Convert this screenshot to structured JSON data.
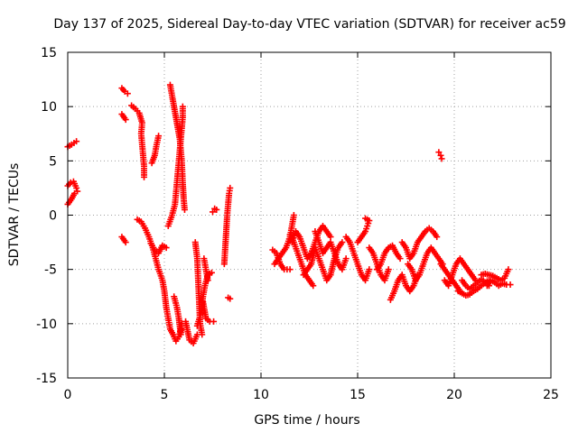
{
  "chart_data": {
    "type": "scatter",
    "title": "Day 137 of 2025, Sidereal Day-to-day VTEC variation (SDTVAR) for receiver ac59",
    "xlabel": "GPS time / hours",
    "ylabel": "SDTVAR / TECUs",
    "xlim": [
      0,
      25
    ],
    "ylim": [
      -15,
      15
    ],
    "xticks": [
      0,
      5,
      10,
      15,
      20,
      25
    ],
    "yticks": [
      -15,
      -10,
      -5,
      0,
      5,
      10,
      15
    ],
    "grid": true,
    "marker": "+",
    "color": "#ff0000",
    "series": [
      {
        "name": "SDTVAR",
        "segments": [
          [
            [
              0.0,
              6.3
            ],
            [
              0.2,
              6.5
            ],
            [
              0.45,
              6.8
            ]
          ],
          [
            [
              0.0,
              2.7
            ],
            [
              0.15,
              3.0
            ],
            [
              0.3,
              3.1
            ],
            [
              0.45,
              2.5
            ]
          ],
          [
            [
              0.0,
              1.0
            ],
            [
              0.2,
              1.5
            ],
            [
              0.35,
              2.0
            ],
            [
              0.5,
              2.2
            ]
          ],
          [
            [
              2.8,
              11.7
            ],
            [
              2.95,
              11.4
            ],
            [
              3.1,
              11.2
            ]
          ],
          [
            [
              2.8,
              9.3
            ],
            [
              3.0,
              8.8
            ]
          ],
          [
            [
              2.8,
              -2.0
            ],
            [
              3.0,
              -2.5
            ]
          ],
          [
            [
              3.3,
              10.1
            ],
            [
              3.5,
              9.8
            ],
            [
              3.7,
              9.4
            ],
            [
              3.85,
              8.5
            ],
            [
              3.8,
              7.5
            ],
            [
              3.85,
              6.5
            ],
            [
              3.9,
              5.5
            ],
            [
              3.95,
              4.5
            ],
            [
              3.95,
              3.5
            ]
          ],
          [
            [
              3.6,
              -0.4
            ],
            [
              3.8,
              -0.6
            ],
            [
              4.0,
              -1.2
            ],
            [
              4.2,
              -2.0
            ],
            [
              4.4,
              -3.0
            ],
            [
              4.55,
              -4.0
            ],
            [
              4.7,
              -5.0
            ],
            [
              4.9,
              -6.0
            ],
            [
              5.0,
              -7.0
            ],
            [
              5.1,
              -8.5
            ],
            [
              5.2,
              -9.5
            ],
            [
              5.3,
              -10.5
            ],
            [
              5.45,
              -11.0
            ],
            [
              5.6,
              -11.6
            ],
            [
              5.75,
              -11.2
            ],
            [
              5.85,
              -10.5
            ]
          ],
          [
            [
              4.3,
              -2.6
            ],
            [
              4.5,
              -3.2
            ],
            [
              4.7,
              -3.5
            ],
            [
              4.9,
              -2.8
            ],
            [
              5.1,
              -3.0
            ]
          ],
          [
            [
              4.35,
              4.8
            ],
            [
              4.5,
              5.5
            ],
            [
              4.6,
              6.5
            ],
            [
              4.7,
              7.3
            ]
          ],
          [
            [
              5.2,
              -1.0
            ],
            [
              5.4,
              0.0
            ],
            [
              5.55,
              1.0
            ],
            [
              5.6,
              2.0
            ],
            [
              5.65,
              3.0
            ],
            [
              5.7,
              4.0
            ],
            [
              5.75,
              5.0
            ],
            [
              5.8,
              6.0
            ],
            [
              5.85,
              7.0
            ],
            [
              5.9,
              8.0
            ],
            [
              5.95,
              9.0
            ],
            [
              5.95,
              10.0
            ]
          ],
          [
            [
              5.3,
              12.0
            ],
            [
              5.45,
              10.5
            ],
            [
              5.6,
              9.0
            ],
            [
              5.8,
              7.0
            ],
            [
              5.9,
              5.0
            ],
            [
              5.95,
              3.0
            ],
            [
              6.0,
              1.5
            ],
            [
              6.05,
              0.5
            ]
          ],
          [
            [
              5.5,
              -7.5
            ],
            [
              5.65,
              -8.5
            ],
            [
              5.75,
              -9.5
            ],
            [
              5.85,
              -11.0
            ],
            [
              5.9,
              -10.0
            ]
          ],
          [
            [
              6.1,
              -9.8
            ],
            [
              6.3,
              -11.5
            ],
            [
              6.5,
              -11.8
            ],
            [
              6.7,
              -11.0
            ]
          ],
          [
            [
              6.6,
              -2.5
            ],
            [
              6.7,
              -4.0
            ],
            [
              6.75,
              -6.0
            ],
            [
              6.8,
              -8.0
            ],
            [
              6.85,
              -10.0
            ],
            [
              6.95,
              -11.0
            ]
          ],
          [
            [
              6.7,
              -10.2
            ],
            [
              6.9,
              -9.0
            ],
            [
              7.0,
              -7.5
            ],
            [
              7.1,
              -6.5
            ],
            [
              7.25,
              -5.5
            ],
            [
              7.45,
              -5.3
            ]
          ],
          [
            [
              7.0,
              -8.0
            ],
            [
              7.15,
              -9.5
            ],
            [
              7.35,
              -9.8
            ],
            [
              7.55,
              -9.8
            ]
          ],
          [
            [
              7.05,
              -4.0
            ],
            [
              7.15,
              -5.0
            ],
            [
              7.25,
              -6.0
            ]
          ],
          [
            [
              7.5,
              0.3
            ],
            [
              7.6,
              0.6
            ],
            [
              7.7,
              0.5
            ]
          ],
          [
            [
              8.1,
              -4.5
            ],
            [
              8.15,
              -3.0
            ],
            [
              8.2,
              -1.5
            ],
            [
              8.25,
              0.0
            ],
            [
              8.3,
              1.0
            ],
            [
              8.35,
              2.0
            ],
            [
              8.4,
              2.5
            ]
          ],
          [
            [
              8.3,
              -7.6
            ],
            [
              8.4,
              -7.7
            ]
          ],
          [
            [
              10.7,
              -4.5
            ],
            [
              10.9,
              -4.0
            ],
            [
              11.1,
              -3.5
            ],
            [
              11.3,
              -3.0
            ],
            [
              11.5,
              -2.0
            ],
            [
              11.6,
              -1.0
            ],
            [
              11.7,
              0.0
            ]
          ],
          [
            [
              10.6,
              -3.2
            ],
            [
              10.8,
              -3.5
            ],
            [
              11.0,
              -4.5
            ],
            [
              11.2,
              -5.0
            ],
            [
              11.5,
              -5.0
            ]
          ],
          [
            [
              11.5,
              -1.8
            ],
            [
              11.7,
              -2.5
            ],
            [
              11.9,
              -3.5
            ],
            [
              12.1,
              -4.5
            ],
            [
              12.3,
              -5.5
            ],
            [
              12.5,
              -6.0
            ],
            [
              12.7,
              -6.5
            ]
          ],
          [
            [
              11.6,
              -2.5
            ],
            [
              11.8,
              -1.5
            ],
            [
              12.0,
              -2.0
            ],
            [
              12.2,
              -3.0
            ],
            [
              12.4,
              -4.0
            ],
            [
              12.6,
              -3.5
            ],
            [
              12.8,
              -2.5
            ],
            [
              13.0,
              -1.5
            ],
            [
              13.2,
              -1.0
            ],
            [
              13.4,
              -1.5
            ],
            [
              13.6,
              -2.0
            ]
          ],
          [
            [
              12.2,
              -5.5
            ],
            [
              12.4,
              -5.0
            ],
            [
              12.6,
              -4.5
            ],
            [
              12.8,
              -3.0
            ],
            [
              13.0,
              -4.0
            ],
            [
              13.2,
              -5.0
            ],
            [
              13.4,
              -6.0
            ],
            [
              13.6,
              -5.5
            ],
            [
              13.8,
              -4.0
            ],
            [
              14.0,
              -3.0
            ],
            [
              14.2,
              -2.5
            ]
          ],
          [
            [
              12.8,
              -1.5
            ],
            [
              13.0,
              -2.5
            ],
            [
              13.2,
              -3.5
            ],
            [
              13.4,
              -3.0
            ],
            [
              13.6,
              -2.5
            ],
            [
              13.8,
              -3.5
            ],
            [
              14.0,
              -4.5
            ],
            [
              14.2,
              -5.0
            ],
            [
              14.4,
              -4.0
            ]
          ],
          [
            [
              14.4,
              -2.0
            ],
            [
              14.6,
              -2.5
            ],
            [
              14.8,
              -3.5
            ],
            [
              15.0,
              -4.5
            ],
            [
              15.2,
              -5.5
            ],
            [
              15.4,
              -6.0
            ],
            [
              15.6,
              -5.0
            ]
          ],
          [
            [
              15.0,
              -2.5
            ],
            [
              15.2,
              -2.0
            ],
            [
              15.4,
              -1.5
            ],
            [
              15.5,
              -1.0
            ],
            [
              15.6,
              -0.5
            ],
            [
              15.4,
              -0.3
            ]
          ],
          [
            [
              15.6,
              -3.0
            ],
            [
              15.8,
              -3.5
            ],
            [
              16.0,
              -4.5
            ],
            [
              16.2,
              -5.5
            ],
            [
              16.4,
              -6.0
            ],
            [
              16.6,
              -5.0
            ]
          ],
          [
            [
              16.0,
              -5.0
            ],
            [
              16.2,
              -4.5
            ],
            [
              16.4,
              -3.5
            ],
            [
              16.6,
              -3.0
            ],
            [
              16.8,
              -2.8
            ],
            [
              17.0,
              -3.5
            ],
            [
              17.2,
              -4.0
            ]
          ],
          [
            [
              16.7,
              -7.8
            ],
            [
              16.9,
              -7.0
            ],
            [
              17.1,
              -6.0
            ],
            [
              17.3,
              -5.5
            ],
            [
              17.5,
              -6.5
            ],
            [
              17.7,
              -7.0
            ],
            [
              17.9,
              -6.5
            ],
            [
              18.1,
              -5.5
            ]
          ],
          [
            [
              17.3,
              -2.5
            ],
            [
              17.5,
              -3.0
            ],
            [
              17.7,
              -4.0
            ],
            [
              17.9,
              -3.5
            ],
            [
              18.1,
              -2.5
            ],
            [
              18.3,
              -2.0
            ],
            [
              18.5,
              -1.5
            ],
            [
              18.7,
              -1.2
            ],
            [
              18.9,
              -1.5
            ],
            [
              19.1,
              -2.0
            ]
          ],
          [
            [
              17.6,
              -4.5
            ],
            [
              17.8,
              -5.0
            ],
            [
              18.0,
              -6.0
            ],
            [
              18.2,
              -5.5
            ],
            [
              18.4,
              -4.5
            ],
            [
              18.6,
              -3.5
            ],
            [
              18.8,
              -3.0
            ],
            [
              19.0,
              -3.5
            ],
            [
              19.2,
              -4.0
            ],
            [
              19.4,
              -4.5
            ]
          ],
          [
            [
              19.2,
              5.8
            ],
            [
              19.3,
              5.5
            ],
            [
              19.35,
              5.2
            ]
          ],
          [
            [
              19.3,
              -4.5
            ],
            [
              19.5,
              -5.0
            ],
            [
              19.7,
              -5.5
            ],
            [
              19.9,
              -6.0
            ],
            [
              20.1,
              -6.5
            ],
            [
              20.3,
              -7.0
            ]
          ],
          [
            [
              19.5,
              -6.0
            ],
            [
              19.7,
              -6.5
            ],
            [
              19.9,
              -5.5
            ],
            [
              20.1,
              -4.5
            ],
            [
              20.3,
              -4.0
            ],
            [
              20.5,
              -4.5
            ],
            [
              20.7,
              -5.0
            ],
            [
              20.9,
              -5.5
            ],
            [
              21.1,
              -6.0
            ]
          ],
          [
            [
              20.2,
              -7.0
            ],
            [
              20.4,
              -7.2
            ],
            [
              20.6,
              -7.4
            ],
            [
              20.8,
              -7.3
            ],
            [
              21.0,
              -7.0
            ],
            [
              21.2,
              -6.8
            ],
            [
              21.4,
              -6.5
            ],
            [
              21.6,
              -6.2
            ],
            [
              21.8,
              -6.0
            ]
          ],
          [
            [
              20.4,
              -6.0
            ],
            [
              20.6,
              -6.5
            ],
            [
              20.8,
              -6.8
            ],
            [
              21.0,
              -6.5
            ],
            [
              21.2,
              -6.2
            ],
            [
              21.4,
              -5.9
            ],
            [
              21.6,
              -6.2
            ],
            [
              21.8,
              -6.5
            ]
          ],
          [
            [
              21.4,
              -5.5
            ],
            [
              21.6,
              -5.4
            ],
            [
              21.8,
              -5.5
            ],
            [
              22.0,
              -5.6
            ],
            [
              22.2,
              -5.8
            ],
            [
              22.4,
              -6.0
            ],
            [
              22.6,
              -5.8
            ],
            [
              22.8,
              -5.0
            ]
          ],
          [
            [
              21.7,
              -6.5
            ],
            [
              21.9,
              -6.0
            ],
            [
              22.1,
              -6.2
            ],
            [
              22.3,
              -6.5
            ],
            [
              22.5,
              -6.3
            ],
            [
              22.7,
              -6.4
            ],
            [
              22.9,
              -6.4
            ]
          ]
        ]
      }
    ]
  }
}
